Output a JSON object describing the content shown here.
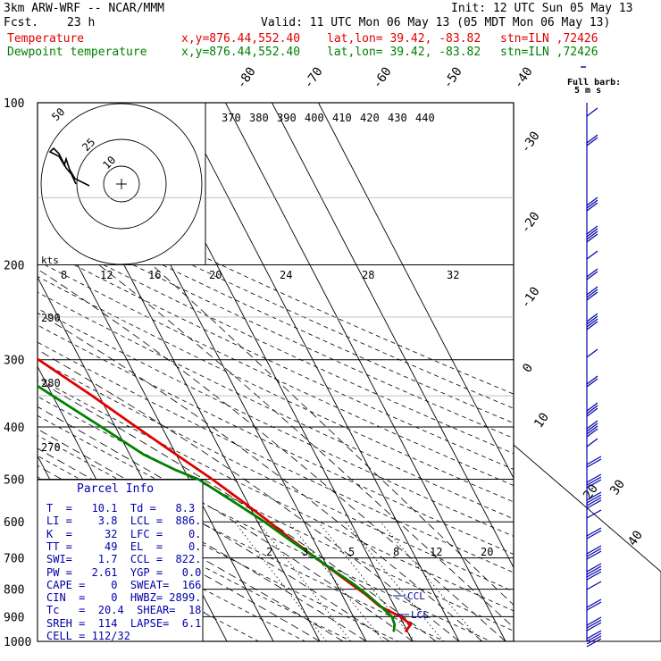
{
  "header": {
    "model": "3km ARW-WRF -- NCAR/MMM",
    "init": "Init: 12 UTC Sun 05 May 13",
    "fcst_label": "Fcst.",
    "fcst_value": "23 h",
    "valid": "Valid: 11 UTC Mon 06 May 13 (05 MDT Mon 06 May 13)",
    "temp_label": "Temperature",
    "dew_label": "Dewpoint temperature",
    "xy": "x,y=876.44,552.40",
    "latlon": "lat,lon= 39.42, -83.82",
    "stn": "stn=ILN ,72426"
  },
  "colors": {
    "temperature": "#e00000",
    "dewpoint": "#008000",
    "barb": "#0000aa",
    "grid": "#000000"
  },
  "chart_data": {
    "type": "line",
    "subtype": "skew-T log-P",
    "pressure_ticks": [
      100,
      200,
      300,
      400,
      500,
      600,
      700,
      800,
      900,
      1000
    ],
    "isotherm_labels": [
      "-80",
      "-70",
      "-60",
      "-50",
      "-40",
      "-30",
      "-20",
      "-10",
      "0",
      "10",
      "20",
      "30",
      "40"
    ],
    "theta_e_labels": [
      "370",
      "380",
      "390",
      "400",
      "410",
      "420",
      "430",
      "440"
    ],
    "hodo_speed_labels": [
      "8",
      "12",
      "16",
      "20",
      "24",
      "28",
      "32"
    ],
    "hodo_kts_label": "kts",
    "hodo_ring_labels": [
      "50",
      "25",
      "10"
    ],
    "theta_labels": [
      "290",
      "280",
      "270"
    ],
    "mixing_ratio_labels": [
      "2",
      "3",
      "5",
      "8",
      "12",
      "20"
    ],
    "ccl_label": "CCL",
    "lcl_label": "LCL",
    "barb_legend_title": "Full barb:",
    "barb_legend_value": "5 m s",
    "temperature": {
      "name": "Temperature",
      "p": [
        960,
        930,
        900,
        860,
        820,
        780,
        740,
        700,
        650,
        600,
        550,
        500,
        450,
        400,
        350,
        300,
        270,
        250,
        230,
        200,
        180,
        160,
        140,
        120,
        100
      ],
      "t": [
        9.5,
        11.5,
        10.1,
        6.8,
        5.2,
        3.0,
        0.8,
        -1.5,
        -4.5,
        -7.5,
        -11.0,
        -15.0,
        -20.0,
        -25.5,
        -31.5,
        -39.0,
        -44.0,
        -48.5,
        -52.5,
        -57.5,
        -58.5,
        -59.5,
        -60.5,
        -60.0,
        -58.5
      ]
    },
    "dewpoint": {
      "name": "Dewpoint temperature",
      "p": [
        960,
        930,
        900,
        860,
        820,
        780,
        740,
        700,
        650,
        600,
        550,
        500,
        480,
        450,
        400,
        350,
        300,
        270,
        250,
        230,
        200,
        180,
        160,
        140,
        120,
        100
      ],
      "td": [
        7.0,
        8.0,
        8.3,
        7.0,
        5.5,
        3.5,
        1.0,
        -1.5,
        -5.0,
        -8.5,
        -13.0,
        -18.0,
        -22.0,
        -27.0,
        -33.0,
        -40.0,
        -48.0,
        -53.0,
        -57.0,
        -61.0,
        -66.0,
        -70.0,
        -74.0,
        -78.0,
        -80.0,
        -80.0
      ]
    }
  },
  "parcel_info": {
    "title": "Parcel Info",
    "rows": [
      "T  =   10.1  Td =   8.3",
      "LI =    3.8  LCL =  886.",
      "K  =     32  LFC =    0.",
      "TT =     49  EL  =    0.",
      "SWI=    1.7  CCL =  822.",
      "PW =   2.61  YGP =   0.0",
      "CAPE =    0  SWEAT=  166",
      "CIN  =    0  HWBZ= 2899.",
      "Tc   =  20.4  SHEAR=  18.",
      "SREH =  114  LAPSE=  6.1",
      "CELL = 112/32"
    ]
  }
}
